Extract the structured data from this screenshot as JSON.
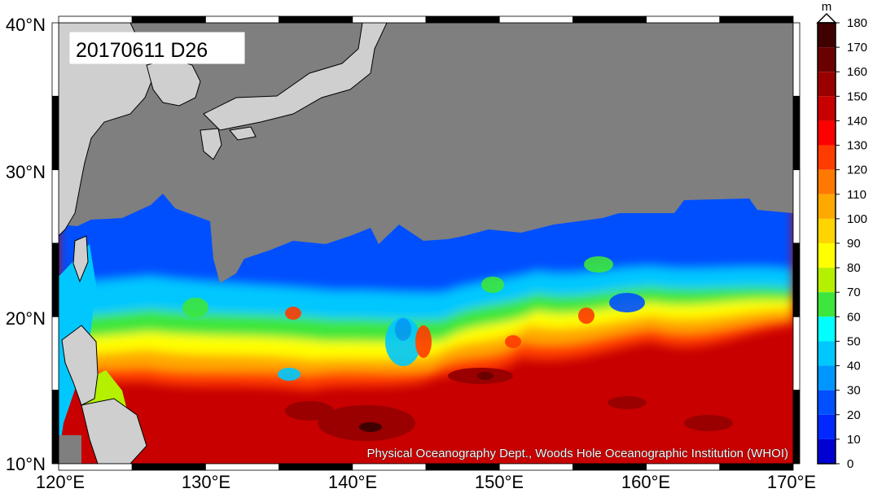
{
  "map": {
    "date_label": "20170611 D26",
    "credit": "Physical Oceanography Dept., Woods Hole Oceanographic Institution (WHOI)",
    "lat_labels": [
      "40°N",
      "30°N",
      "20°N",
      "10°N"
    ],
    "lon_labels": [
      "120°E",
      "130°E",
      "140°E",
      "150°E",
      "160°E",
      "170°E"
    ],
    "extent": {
      "lon": [
        120,
        170
      ],
      "lat": [
        10,
        40
      ]
    },
    "land_color": "#7f7f7f",
    "other_land_color": "#cfcfcf"
  },
  "colorbar": {
    "unit": "m",
    "ticks": [
      "180",
      "170",
      "160",
      "150",
      "140",
      "130",
      "120",
      "110",
      "100",
      "90",
      "80",
      "70",
      "60",
      "50",
      "40",
      "30",
      "20",
      "10",
      "0"
    ],
    "colors": [
      "#400000",
      "#6a0000",
      "#9a0000",
      "#c80000",
      "#ff0000",
      "#ff3c00",
      "#ff7800",
      "#ffa800",
      "#ffd400",
      "#ffff00",
      "#b4f000",
      "#3ce63c",
      "#00ffff",
      "#00c8ff",
      "#0096ff",
      "#0050ff",
      "#0028ff",
      "#0000d2",
      "#00009a"
    ]
  }
}
